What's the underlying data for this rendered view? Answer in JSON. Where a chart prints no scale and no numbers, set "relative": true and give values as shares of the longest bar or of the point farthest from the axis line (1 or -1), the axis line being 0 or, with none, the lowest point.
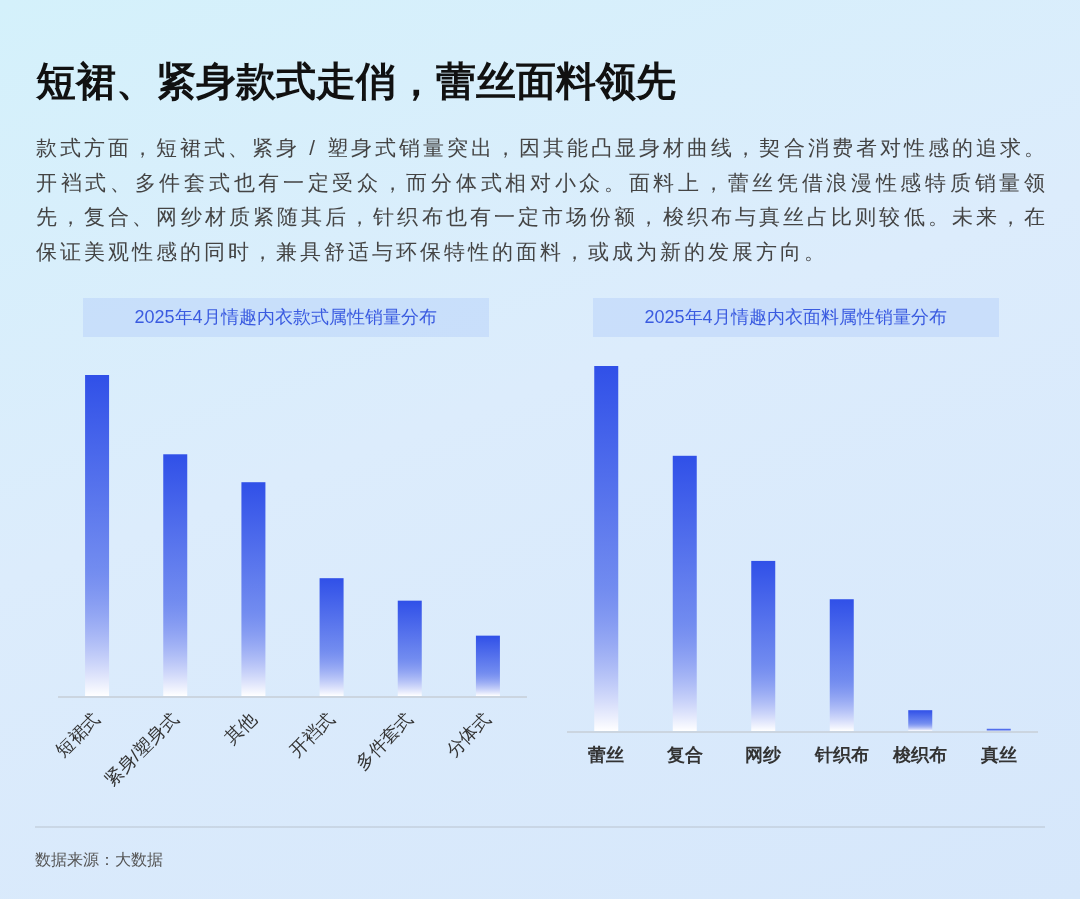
{
  "chart_data": [
    {
      "type": "other",
      "title": "短裙、紧身款式走俏，蕾丝面料领先",
      "subtitle": "款式方面，短裙式、紧身 / 塑身式销量突出，因其能凸显身材曲线，契合消费者对性感的追求。开裆式、多件套式也有一定受众，而分体式相对小众。面料上，蕾丝凭借浪漫性感特质销量领先，复合、网纱材质紧随其后，针织布也有一定市场份额，梭织布与真丝占比则较低。未来，在保证美观性感的同时，兼具舒适与环保特性的面料，或成为新的发展方向。",
      "annotations": [
        "数据来源：大数据"
      ]
    },
    {
      "type": "bar",
      "title": "2025年4月情趣内衣款式属性销量分布",
      "categories": [
        "短裙式",
        "紧身/塑身式",
        "其他",
        "开裆式",
        "多件套式",
        "分体式"
      ],
      "values": [
        1,
        0.753,
        0.666,
        0.367,
        0.297,
        0.188
      ],
      "color": "#3050e8",
      "relative": true
    },
    {
      "type": "bar",
      "title": "2025年4月情趣内衣面料属性销量分布",
      "categories": [
        "蕾丝",
        "复合",
        "网纱",
        "针织布",
        "梭织布",
        "真丝"
      ],
      "values": [
        1,
        0.754,
        0.466,
        0.361,
        0.057,
        0.006
      ],
      "color": "#3050e8",
      "relative": true
    }
  ]
}
